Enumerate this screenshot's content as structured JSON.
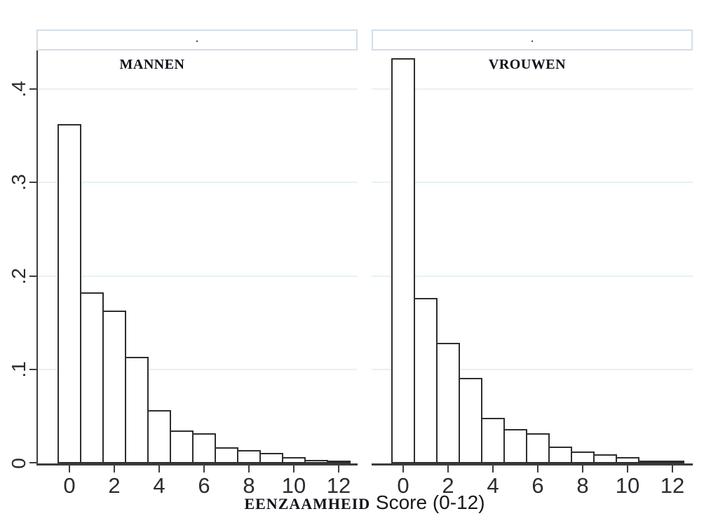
{
  "figure": {
    "header_dot": ".",
    "xaxis_title_caps": "EENZAAMHEID",
    "xaxis_title_rest": " Score (0-12)"
  },
  "chart_data": {
    "type": "bar",
    "subtype": "histogram, two panels side by side (density fractions)",
    "title": "",
    "xlabel": "EENZAAMHEID Score (0-12)",
    "ylabel": "",
    "categories": [
      0,
      1,
      2,
      3,
      4,
      5,
      6,
      7,
      8,
      9,
      10,
      11,
      12
    ],
    "series": [
      {
        "name": "MANNEN",
        "values": [
          0.362,
          0.183,
          0.163,
          0.114,
          0.057,
          0.035,
          0.032,
          0.017,
          0.014,
          0.011,
          0.007,
          0.004,
          0.002
        ]
      },
      {
        "name": "VROUWEN",
        "values": [
          0.433,
          0.177,
          0.129,
          0.091,
          0.049,
          0.037,
          0.032,
          0.018,
          0.013,
          0.01,
          0.007,
          0.003,
          0.002
        ]
      }
    ],
    "ylim": [
      0,
      0.44
    ],
    "ytick_values": [
      0,
      0.1,
      0.2,
      0.3,
      0.4
    ],
    "ytick_labels": [
      "0",
      ".1",
      ".2",
      ".3",
      ".4"
    ],
    "xtick_values": [
      0,
      2,
      4,
      6,
      8,
      10,
      12
    ],
    "grid": "horizontal pale gridlines at y ticks, legend none",
    "colors": {
      "bar_fill": "#ffffff",
      "bar_border": "#2e2e2e",
      "axis": "#3d3d3d",
      "gridline": "#e7f2f2",
      "header_box_border": "#d2dee8",
      "text": "#101018"
    }
  }
}
